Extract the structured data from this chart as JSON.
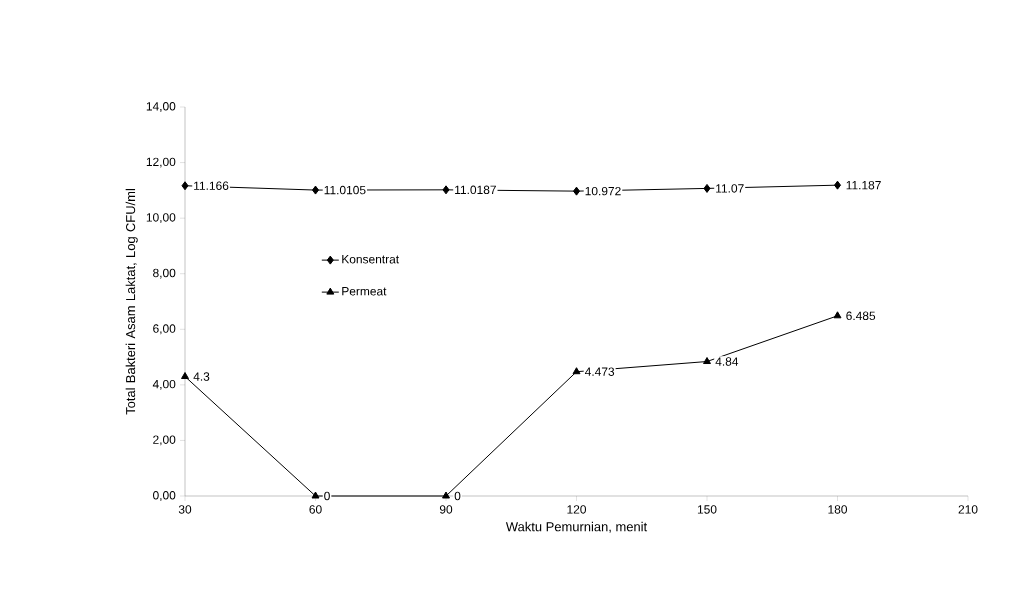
{
  "chart_data": {
    "type": "line",
    "xlabel": "Waktu Pemurnian, menit",
    "ylabel": "Total Bakteri Asam Laktat, Log CFU/ml",
    "x": [
      30,
      60,
      90,
      120,
      150,
      180
    ],
    "series": [
      {
        "name": "Konsentrat",
        "color": "#000000",
        "marker": "diamond",
        "values": [
          11.166,
          11.0105,
          11.0187,
          10.972,
          11.07,
          11.187
        ]
      },
      {
        "name": "Permeat",
        "color": "#000000",
        "marker": "triangle",
        "values": [
          4.3,
          0,
          0,
          4.473,
          4.84,
          6.485
        ]
      }
    ],
    "xlim": [
      30,
      210
    ],
    "xticks": [
      30,
      60,
      90,
      120,
      150,
      180,
      210
    ],
    "ylim": [
      0,
      14
    ],
    "yticks": [
      {
        "value": 0,
        "label": "0,00"
      },
      {
        "value": 2,
        "label": "2,00"
      },
      {
        "value": 4,
        "label": "4,00"
      },
      {
        "value": 6,
        "label": "6,00"
      },
      {
        "value": 8,
        "label": "8,00"
      },
      {
        "value": 10,
        "label": "10,00"
      },
      {
        "value": 12,
        "label": "12,00"
      },
      {
        "value": 14,
        "label": "14,00"
      }
    ],
    "data_labels": true,
    "legend": "left",
    "grid": false
  }
}
